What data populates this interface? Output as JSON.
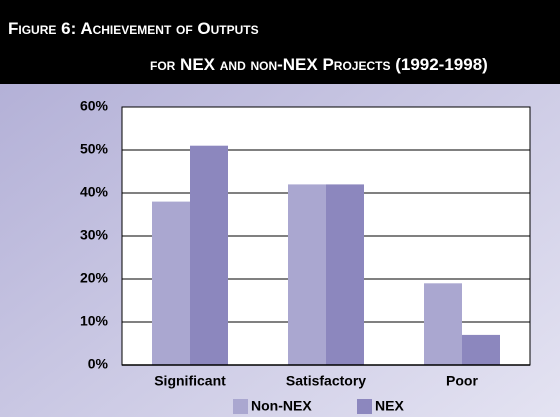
{
  "chart_data": {
    "type": "bar",
    "title": "Figure 6: Achievement of Outputs",
    "subtitle": "for NEX and non-NEX Projects (1992-1998)",
    "categories": [
      "Significant",
      "Satisfactory",
      "Poor"
    ],
    "series": [
      {
        "name": "Non-NEX",
        "color": "#aaa7d0",
        "values": [
          38,
          42,
          19
        ]
      },
      {
        "name": "NEX",
        "color": "#8c87be",
        "values": [
          51,
          42,
          7
        ]
      }
    ],
    "ylim": [
      0,
      60
    ],
    "yticks": [
      {
        "value": 0,
        "label": "0%"
      },
      {
        "value": 10,
        "label": "10%"
      },
      {
        "value": 20,
        "label": "20%"
      },
      {
        "value": 30,
        "label": "30%"
      },
      {
        "value": 40,
        "label": "40%"
      },
      {
        "value": 50,
        "label": "50%"
      },
      {
        "value": 60,
        "label": "60%"
      }
    ],
    "grid": true,
    "legend": "bottom"
  }
}
